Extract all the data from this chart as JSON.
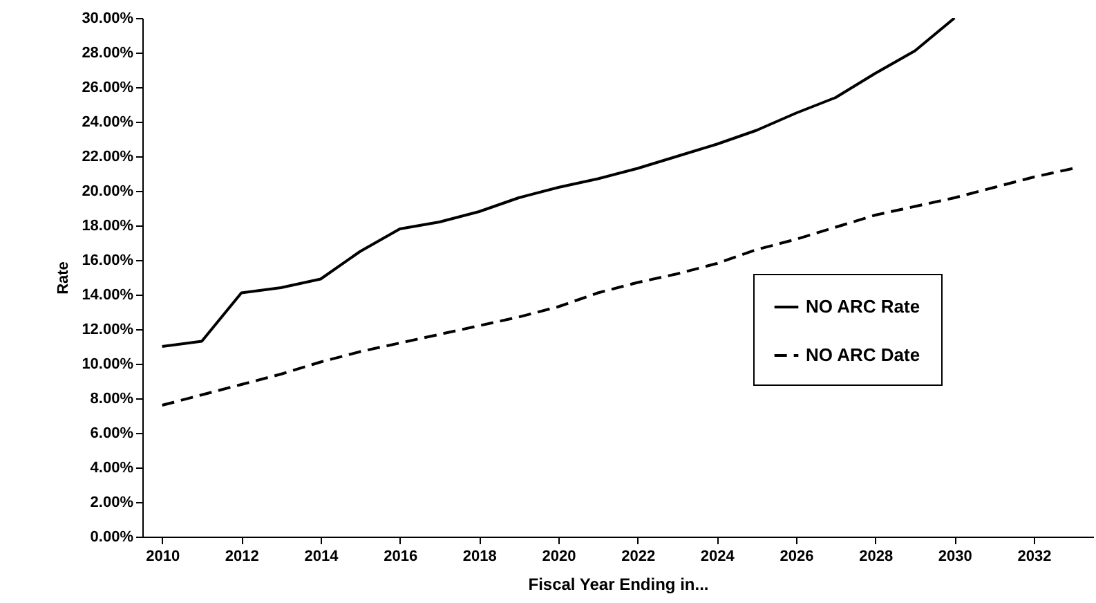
{
  "chart_data": {
    "type": "line",
    "xlabel": "Fiscal Year Ending in...",
    "ylabel": "Rate",
    "x": [
      2010,
      2011,
      2012,
      2013,
      2014,
      2015,
      2016,
      2017,
      2018,
      2019,
      2020,
      2021,
      2022,
      2023,
      2024,
      2025,
      2026,
      2027,
      2028,
      2029,
      2030,
      2031,
      2032,
      2033
    ],
    "series": [
      {
        "name": "NO ARC Rate",
        "color": "#000000",
        "line_style": "solid",
        "values": [
          11.0,
          11.3,
          14.1,
          14.4,
          14.9,
          16.5,
          17.8,
          18.2,
          18.8,
          19.6,
          20.2,
          20.7,
          21.3,
          22.0,
          22.7,
          23.5,
          24.5,
          25.4,
          26.8,
          28.1,
          30.0,
          null,
          null,
          null
        ]
      },
      {
        "name": "NO ARC Date",
        "color": "#000000",
        "line_style": "dashed",
        "values": [
          7.6,
          8.2,
          8.8,
          9.4,
          10.1,
          10.7,
          11.2,
          11.7,
          12.2,
          12.7,
          13.3,
          14.1,
          14.7,
          15.2,
          15.8,
          16.6,
          17.2,
          17.9,
          18.6,
          19.1,
          19.6,
          20.2,
          20.8,
          21.3
        ]
      }
    ],
    "xlim": [
      2009.5,
      2033.5
    ],
    "xticks": [
      2010,
      2012,
      2014,
      2016,
      2018,
      2020,
      2022,
      2024,
      2026,
      2028,
      2030,
      2032
    ],
    "ylim": [
      0,
      30
    ],
    "yticks": [
      {
        "value": 0,
        "label": "0.00%"
      },
      {
        "value": 2,
        "label": "2.00%"
      },
      {
        "value": 4,
        "label": "4.00%"
      },
      {
        "value": 6,
        "label": "6.00%"
      },
      {
        "value": 8,
        "label": "8.00%"
      },
      {
        "value": 10,
        "label": "10.00%"
      },
      {
        "value": 12,
        "label": "12.00%"
      },
      {
        "value": 14,
        "label": "14.00%"
      },
      {
        "value": 16,
        "label": "16.00%"
      },
      {
        "value": 18,
        "label": "18.00%"
      },
      {
        "value": 20,
        "label": "20.00%"
      },
      {
        "value": 22,
        "label": "22.00%"
      },
      {
        "value": 24,
        "label": "24.00%"
      },
      {
        "value": 26,
        "label": "26.00%"
      },
      {
        "value": 28,
        "label": "28.00%"
      },
      {
        "value": 30,
        "label": "30.00%"
      }
    ],
    "grid": false,
    "legend": "bottom right",
    "marker": "none"
  }
}
